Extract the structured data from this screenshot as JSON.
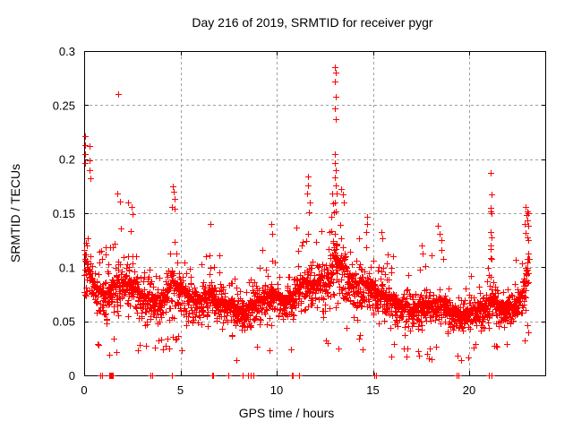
{
  "chart_data": {
    "type": "scatter",
    "title": "Day 216 of 2019, SRMTID for receiver pygr",
    "xlabel": "GPS time / hours",
    "ylabel": "SRMTID / TECUs",
    "xlim": [
      0,
      24
    ],
    "ylim": [
      0,
      0.3
    ],
    "xticks": [
      0,
      5,
      10,
      15,
      20
    ],
    "xtick_labels": [
      "0",
      "5",
      "10",
      "15",
      "20"
    ],
    "yticks": [
      0,
      0.05,
      0.1,
      0.15,
      0.2,
      0.25,
      0.3
    ],
    "ytick_labels": [
      "0",
      "0.05",
      "0.1",
      "0.15",
      "0.2",
      "0.25",
      "0.3"
    ],
    "grid": true,
    "legend": "none",
    "marker": "plus",
    "colors": {
      "points": "#ff0000",
      "grid": "#a0a0a0",
      "axis": "#000000",
      "background": "#ffffff",
      "text": "#000000"
    },
    "sampling": {
      "seed": 1234567,
      "rate_per_hour": 118,
      "t_start": 0.0,
      "t_end": 23.1
    },
    "envelope": {
      "t": [
        0.0,
        0.1,
        0.3,
        0.6,
        1.0,
        1.4,
        1.8,
        2.2,
        2.6,
        3.0,
        3.4,
        3.8,
        4.2,
        4.6,
        5.0,
        5.4,
        5.8,
        6.2,
        6.6,
        7.0,
        7.4,
        7.8,
        8.2,
        8.6,
        9.0,
        9.4,
        9.8,
        10.2,
        10.6,
        11.0,
        11.4,
        11.7,
        12.0,
        12.4,
        12.8,
        13.0,
        13.2,
        13.5,
        13.8,
        14.2,
        14.6,
        15.0,
        15.4,
        15.8,
        16.2,
        16.6,
        17.0,
        17.4,
        17.8,
        18.2,
        18.6,
        19.0,
        19.4,
        19.8,
        20.2,
        20.6,
        21.0,
        21.2,
        21.5,
        21.9,
        22.3,
        22.7,
        23.0,
        23.1
      ],
      "lo": [
        0.055,
        0.05,
        0.05,
        0.04,
        0.04,
        0.04,
        0.04,
        0.04,
        0.04,
        0.035,
        0.035,
        0.035,
        0.04,
        0.04,
        0.04,
        0.035,
        0.035,
        0.035,
        0.035,
        0.03,
        0.03,
        0.028,
        0.028,
        0.03,
        0.032,
        0.035,
        0.035,
        0.035,
        0.035,
        0.04,
        0.04,
        0.045,
        0.045,
        0.045,
        0.05,
        0.05,
        0.05,
        0.05,
        0.045,
        0.04,
        0.04,
        0.04,
        0.04,
        0.035,
        0.035,
        0.03,
        0.03,
        0.03,
        0.03,
        0.032,
        0.032,
        0.03,
        0.028,
        0.03,
        0.032,
        0.032,
        0.035,
        0.04,
        0.035,
        0.035,
        0.04,
        0.045,
        0.055,
        0.06
      ],
      "med": [
        0.11,
        0.1,
        0.095,
        0.08,
        0.075,
        0.08,
        0.085,
        0.085,
        0.08,
        0.075,
        0.07,
        0.07,
        0.075,
        0.085,
        0.08,
        0.072,
        0.068,
        0.07,
        0.075,
        0.07,
        0.065,
        0.062,
        0.06,
        0.065,
        0.068,
        0.072,
        0.075,
        0.07,
        0.072,
        0.078,
        0.085,
        0.09,
        0.085,
        0.09,
        0.095,
        0.11,
        0.1,
        0.1,
        0.09,
        0.085,
        0.085,
        0.078,
        0.075,
        0.07,
        0.068,
        0.062,
        0.06,
        0.065,
        0.065,
        0.068,
        0.07,
        0.06,
        0.055,
        0.058,
        0.06,
        0.06,
        0.068,
        0.075,
        0.065,
        0.06,
        0.065,
        0.075,
        0.1,
        0.11
      ],
      "hi": [
        0.22,
        0.19,
        0.21,
        0.13,
        0.13,
        0.15,
        0.16,
        0.16,
        0.15,
        0.14,
        0.12,
        0.12,
        0.13,
        0.175,
        0.14,
        0.13,
        0.12,
        0.125,
        0.14,
        0.125,
        0.115,
        0.11,
        0.11,
        0.12,
        0.125,
        0.135,
        0.14,
        0.125,
        0.13,
        0.14,
        0.165,
        0.185,
        0.15,
        0.155,
        0.17,
        0.2,
        0.185,
        0.175,
        0.16,
        0.145,
        0.148,
        0.135,
        0.135,
        0.125,
        0.125,
        0.11,
        0.11,
        0.12,
        0.12,
        0.13,
        0.135,
        0.105,
        0.095,
        0.1,
        0.105,
        0.11,
        0.13,
        0.155,
        0.105,
        0.1,
        0.11,
        0.13,
        0.155,
        0.156
      ]
    },
    "outliers": [
      [
        0.03,
        0.221
      ],
      [
        0.05,
        0.213
      ],
      [
        0.04,
        0.205
      ],
      [
        0.06,
        0.196
      ],
      [
        0.28,
        0.212
      ],
      [
        0.3,
        0.199
      ],
      [
        0.29,
        0.19
      ],
      [
        0.31,
        0.182
      ],
      [
        1.78,
        0.26
      ],
      [
        1.72,
        0.168
      ],
      [
        1.88,
        0.161
      ],
      [
        2.3,
        0.16
      ],
      [
        2.45,
        0.156
      ],
      [
        2.52,
        0.149
      ],
      [
        4.62,
        0.175
      ],
      [
        4.66,
        0.17
      ],
      [
        4.7,
        0.163
      ],
      [
        4.58,
        0.156
      ],
      [
        4.72,
        0.154
      ],
      [
        6.55,
        0.14
      ],
      [
        9.7,
        0.14
      ],
      [
        9.75,
        0.131
      ],
      [
        11.62,
        0.184
      ],
      [
        11.65,
        0.176
      ],
      [
        11.58,
        0.168
      ],
      [
        11.7,
        0.16
      ],
      [
        11.66,
        0.151
      ],
      [
        12.9,
        0.168
      ],
      [
        12.95,
        0.159
      ],
      [
        13.02,
        0.285
      ],
      [
        13.06,
        0.28
      ],
      [
        13.03,
        0.272
      ],
      [
        13.07,
        0.258
      ],
      [
        13.01,
        0.247
      ],
      [
        13.05,
        0.237
      ],
      [
        13.04,
        0.205
      ],
      [
        13.02,
        0.196
      ],
      [
        13.08,
        0.19
      ],
      [
        13.0,
        0.183
      ],
      [
        13.05,
        0.176
      ],
      [
        13.1,
        0.168
      ],
      [
        13.03,
        0.16
      ],
      [
        13.06,
        0.152
      ],
      [
        13.35,
        0.172
      ],
      [
        13.45,
        0.167
      ],
      [
        13.5,
        0.16
      ],
      [
        14.68,
        0.147
      ],
      [
        14.72,
        0.14
      ],
      [
        14.65,
        0.133
      ],
      [
        15.45,
        0.133
      ],
      [
        15.5,
        0.127
      ],
      [
        17.55,
        0.12
      ],
      [
        17.6,
        0.113
      ],
      [
        18.35,
        0.138
      ],
      [
        18.45,
        0.131
      ],
      [
        18.55,
        0.125
      ],
      [
        21.12,
        0.187
      ],
      [
        21.14,
        0.167
      ],
      [
        21.12,
        0.155
      ],
      [
        21.13,
        0.152
      ],
      [
        21.15,
        0.15
      ],
      [
        21.1,
        0.133
      ],
      [
        21.16,
        0.128
      ],
      [
        21.12,
        0.12
      ],
      [
        21.14,
        0.108
      ],
      [
        22.95,
        0.156
      ],
      [
        23.0,
        0.152
      ],
      [
        22.98,
        0.148
      ],
      [
        23.05,
        0.15
      ],
      [
        23.02,
        0.143
      ],
      [
        22.9,
        0.14
      ],
      [
        23.08,
        0.138
      ],
      [
        22.93,
        0.132
      ],
      [
        23.0,
        0.128
      ],
      [
        23.06,
        0.125
      ]
    ],
    "zero_value_times": [
      0.85,
      0.92,
      1.3,
      1.33,
      1.36,
      1.4,
      1.43,
      1.47,
      3.42,
      3.52,
      4.58,
      6.65,
      6.72,
      7.48,
      8.22,
      8.52,
      8.65,
      8.78,
      10.78,
      10.85,
      11.15,
      15.05,
      15.18,
      19.35,
      19.45,
      21.0,
      21.15
    ]
  }
}
